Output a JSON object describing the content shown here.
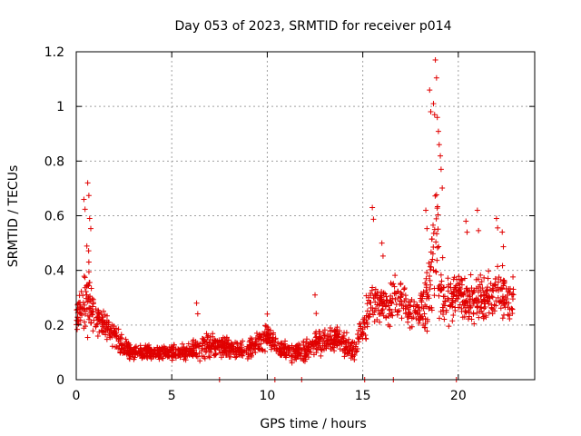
{
  "chart_data": {
    "type": "scatter",
    "title": "Day 053 of 2023, SRMTID for receiver p014",
    "xlabel": "GPS time / hours",
    "ylabel": "SRMTID / TECUs",
    "xlim": [
      0,
      24
    ],
    "ylim": [
      0,
      1.2
    ],
    "xticks": [
      0,
      5,
      10,
      15,
      20
    ],
    "xtick_labels": [
      "0",
      "5",
      "10",
      "15",
      "20"
    ],
    "yticks": [
      0,
      0.2,
      0.4,
      0.6,
      0.8,
      1,
      1.2
    ],
    "ytick_labels": [
      "0",
      "0.2",
      "0.4",
      "0.6",
      "0.8",
      "1",
      "1.2"
    ],
    "grid": true,
    "marker": "plus",
    "color": "#e00000",
    "series": [
      {
        "name": "SRMTID",
        "envelope": {
          "x": [
            0,
            0.3,
            0.5,
            0.7,
            0.8,
            1.0,
            1.5,
            2.0,
            2.5,
            3,
            4,
            5,
            6,
            6.5,
            7,
            8,
            9,
            9.5,
            10,
            10.5,
            11,
            12,
            12.5,
            13,
            13.5,
            14,
            14.5,
            15,
            15.3,
            15.5,
            16,
            16.5,
            17,
            17.5,
            18,
            18.3,
            18.6,
            18.8,
            19,
            19.3,
            19.6,
            20,
            20.5,
            21,
            21.5,
            22,
            22.5,
            22.9
          ],
          "center": [
            0.22,
            0.28,
            0.3,
            0.32,
            0.28,
            0.22,
            0.2,
            0.16,
            0.12,
            0.1,
            0.1,
            0.1,
            0.1,
            0.12,
            0.13,
            0.11,
            0.11,
            0.13,
            0.16,
            0.12,
            0.1,
            0.1,
            0.13,
            0.15,
            0.15,
            0.14,
            0.1,
            0.18,
            0.26,
            0.28,
            0.27,
            0.28,
            0.3,
            0.24,
            0.26,
            0.3,
            0.4,
            0.55,
            0.4,
            0.32,
            0.3,
            0.32,
            0.28,
            0.3,
            0.3,
            0.32,
            0.3,
            0.3
          ],
          "spread": [
            0.06,
            0.1,
            0.18,
            0.22,
            0.15,
            0.08,
            0.06,
            0.05,
            0.04,
            0.03,
            0.03,
            0.03,
            0.04,
            0.06,
            0.05,
            0.04,
            0.04,
            0.05,
            0.06,
            0.04,
            0.04,
            0.04,
            0.06,
            0.06,
            0.05,
            0.05,
            0.04,
            0.07,
            0.15,
            0.13,
            0.08,
            0.1,
            0.1,
            0.07,
            0.08,
            0.15,
            0.25,
            0.35,
            0.2,
            0.12,
            0.1,
            0.08,
            0.09,
            0.12,
            0.12,
            0.1,
            0.12,
            0.1
          ]
        },
        "peaks": [
          {
            "x": 0.6,
            "y": 0.72
          },
          {
            "x": 0.4,
            "y": 0.66
          },
          {
            "x": 0.7,
            "y": 0.59
          },
          {
            "x": 6.3,
            "y": 0.28
          },
          {
            "x": 10.0,
            "y": 0.24
          },
          {
            "x": 12.5,
            "y": 0.31
          },
          {
            "x": 15.5,
            "y": 0.63
          },
          {
            "x": 16.0,
            "y": 0.5
          },
          {
            "x": 18.5,
            "y": 1.06
          },
          {
            "x": 18.7,
            "y": 1.01
          },
          {
            "x": 18.8,
            "y": 1.17
          },
          {
            "x": 18.9,
            "y": 0.96
          },
          {
            "x": 19.0,
            "y": 0.86
          },
          {
            "x": 19.1,
            "y": 0.77
          },
          {
            "x": 18.3,
            "y": 0.62
          },
          {
            "x": 20.4,
            "y": 0.58
          },
          {
            "x": 21.0,
            "y": 0.62
          },
          {
            "x": 22.0,
            "y": 0.59
          },
          {
            "x": 22.3,
            "y": 0.54
          }
        ],
        "zeros": [
          7.5,
          10.4,
          11.8,
          15.1,
          16.6,
          19.9
        ]
      }
    ]
  }
}
